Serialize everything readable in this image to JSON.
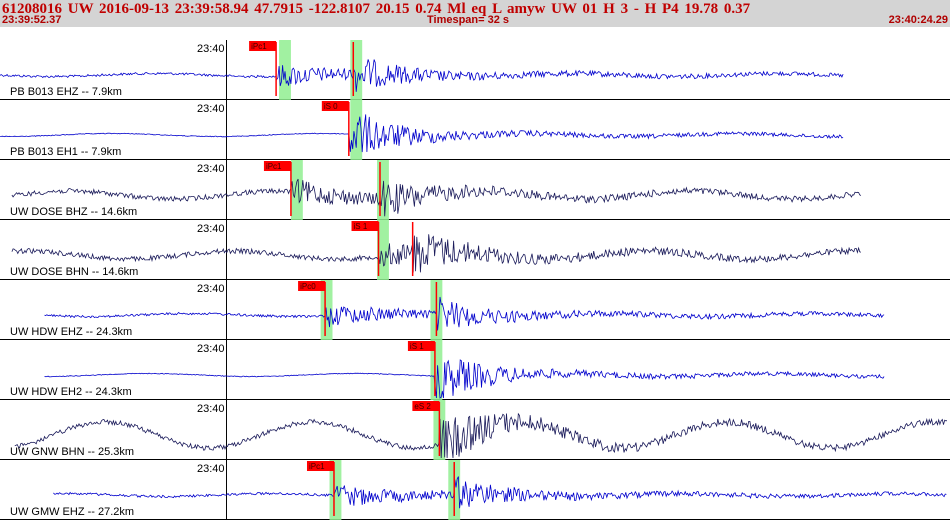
{
  "header": {
    "event_line": "61208016 UW 2016-09-13 23:39:58.94   47.7915 -122.8107  20.15  0.74 Ml  eq  L amyw     UW 01  H   3  -  H P4   19.78  0.37",
    "start_time": "23:39:52.37",
    "timespan": "Timespan=  32 s",
    "end_time": "23:40:24.29"
  },
  "colors": {
    "header_bg": "#d4d4d4",
    "header_text": "#c00000",
    "trace_blue": "#0000cc",
    "trace_navy": "#1a1a5a",
    "pick": "#ff0000",
    "highlight": "#90ee90"
  },
  "chart_data": {
    "type": "line",
    "x_unit": "s",
    "x_range": [
      0,
      32
    ],
    "minute_tick": {
      "label": "23:40",
      "x": 7.63
    },
    "traces": [
      {
        "label": "PB B013 EHZ -- 7.9km",
        "color": "blue",
        "data_start": 0,
        "data_end": 28.4,
        "picks": [
          {
            "label": "iPc1",
            "x": 9.3,
            "band": [
              9.4,
              9.8
            ]
          },
          {
            "x": 11.9,
            "band": [
              11.8,
              12.2
            ]
          }
        ]
      },
      {
        "label": "PB B013 EH1 -- 7.9km",
        "color": "blue",
        "data_start": 0,
        "data_end": 28.4,
        "picks": [
          {
            "label": "iS 0",
            "x": 11.75,
            "band": [
              11.8,
              12.2
            ]
          }
        ]
      },
      {
        "label": "UW DOSE BHZ -- 14.6km",
        "color": "navy",
        "data_start": 0.4,
        "data_end": 29.0,
        "picks": [
          {
            "label": "iPc1",
            "x": 9.8,
            "band": [
              9.8,
              10.2
            ]
          },
          {
            "x": 12.8,
            "band": [
              12.7,
              13.1
            ]
          }
        ]
      },
      {
        "label": "UW DOSE BHN -- 14.6km",
        "color": "navy",
        "data_start": 0.4,
        "data_end": 29.0,
        "picks": [
          {
            "label": "iS 1",
            "x": 12.75,
            "band": [
              12.7,
              13.1
            ]
          },
          {
            "x": 13.9
          }
        ]
      },
      {
        "label": "UW HDW EHZ -- 24.3km",
        "color": "blue",
        "data_start": 1.5,
        "data_end": 29.8,
        "picks": [
          {
            "label": "iPc0",
            "x": 10.95,
            "band": [
              10.8,
              11.2
            ]
          },
          {
            "x": 14.7,
            "band": [
              14.5,
              14.9
            ]
          }
        ]
      },
      {
        "label": "UW HDW EH2 -- 24.3km",
        "color": "blue",
        "data_start": 1.5,
        "data_end": 29.8,
        "picks": [
          {
            "label": "iS 1",
            "x": 14.65,
            "band": [
              14.5,
              14.9
            ]
          }
        ]
      },
      {
        "label": "UW GNW BHN -- 25.3km",
        "color": "navy",
        "data_start": 0.5,
        "data_end": 31.9,
        "picks": [
          {
            "label": "eS 2",
            "x": 14.8,
            "band": [
              14.6,
              15.0
            ]
          }
        ]
      },
      {
        "label": "UW GMW EHZ -- 27.2km",
        "color": "blue",
        "data_start": 1.8,
        "data_end": 31.9,
        "picks": [
          {
            "label": "iPc1",
            "x": 11.25,
            "band": [
              11.1,
              11.5
            ]
          },
          {
            "x": 15.3,
            "band": [
              15.1,
              15.5
            ]
          }
        ]
      }
    ]
  }
}
